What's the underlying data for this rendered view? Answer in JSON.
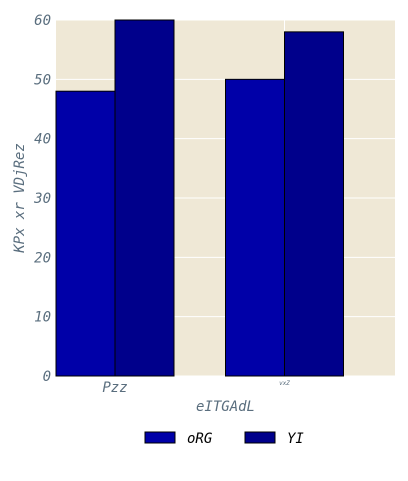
{
  "chart_data": {
    "type": "bar",
    "categories": [
      "Pzz",
      "vxZ"
    ],
    "series": [
      {
        "name": "oRG",
        "values": [
          48,
          50
        ],
        "color": "#0000a8"
      },
      {
        "name": "YI",
        "values": [
          60,
          58
        ],
        "color": "#00008b"
      }
    ],
    "xlabel": "eITGAdL",
    "ylabel": "KPx xr VDjRez",
    "ylim": [
      0,
      60
    ],
    "yticks": [
      0,
      10,
      20,
      30,
      40,
      50,
      60
    ],
    "grid": true,
    "legend_position": "bottom-center",
    "plot_background": "#efe8d6",
    "grid_color": "#ffffff",
    "text_color": "#5a6e7e"
  }
}
